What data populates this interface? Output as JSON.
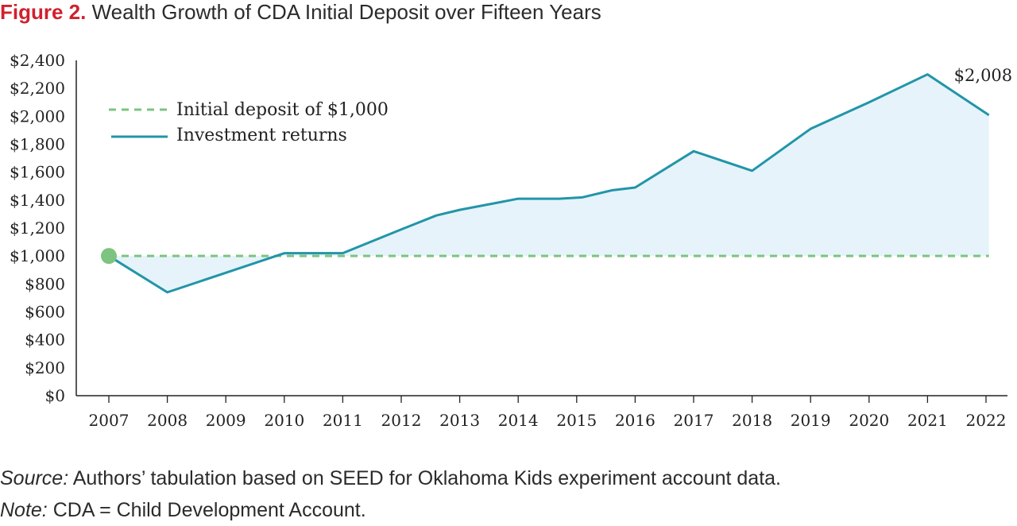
{
  "header": {
    "figure_label": "Figure 2.",
    "title": "Wealth Growth of CDA Initial Deposit over Fifteen Years"
  },
  "footer": {
    "source_label": "Source:",
    "source_text": "Authors’ tabulation based on SEED for Oklahoma Kids experiment account data.",
    "note_label": "Note:",
    "note_text": "CDA = Child Development Account."
  },
  "colors": {
    "title_accent": "#d0202e",
    "investment_line": "#2295a8",
    "investment_fill": "#e6f3fa",
    "deposit_line": "#7cc47f",
    "start_marker": "#7cc47f"
  },
  "chart_data": {
    "type": "line",
    "title": "Wealth Growth of CDA Initial Deposit over Fifteen Years",
    "categories": [
      "2007",
      "2008",
      "2009",
      "2010",
      "2011",
      "2012",
      "2013",
      "2014",
      "2015",
      "2016",
      "2017",
      "2018",
      "2019",
      "2020",
      "2021",
      "2022"
    ],
    "y_ticks": [
      "$0",
      "$200",
      "$400",
      "$600",
      "$800",
      "$1,000",
      "$1,200",
      "$1,400",
      "$1,600",
      "$1,800",
      "$2,000",
      "$2,200",
      "$2,400"
    ],
    "ylim": [
      0,
      2400
    ],
    "grid": false,
    "legend_position": "top-left",
    "series": [
      {
        "name": "Initial deposit of $1,000",
        "style": "dashed",
        "x": [
          2007,
          2022.05
        ],
        "values": [
          1000,
          1000
        ]
      },
      {
        "name": "Investment returns",
        "style": "solid-area",
        "x": [
          2007,
          2008,
          2009,
          2010,
          2011,
          2012,
          2012.6,
          2013,
          2014,
          2014.7,
          2015.1,
          2015.6,
          2016,
          2017,
          2018,
          2019,
          2020,
          2021,
          2022.05
        ],
        "values": [
          1000,
          740,
          880,
          1020,
          1020,
          1190,
          1290,
          1330,
          1410,
          1410,
          1420,
          1470,
          1490,
          1750,
          1610,
          1910,
          2100,
          2300,
          2008
        ]
      }
    ],
    "annotations": [
      {
        "text": "$2,008",
        "x": 2022.05,
        "y": 2008
      }
    ]
  }
}
